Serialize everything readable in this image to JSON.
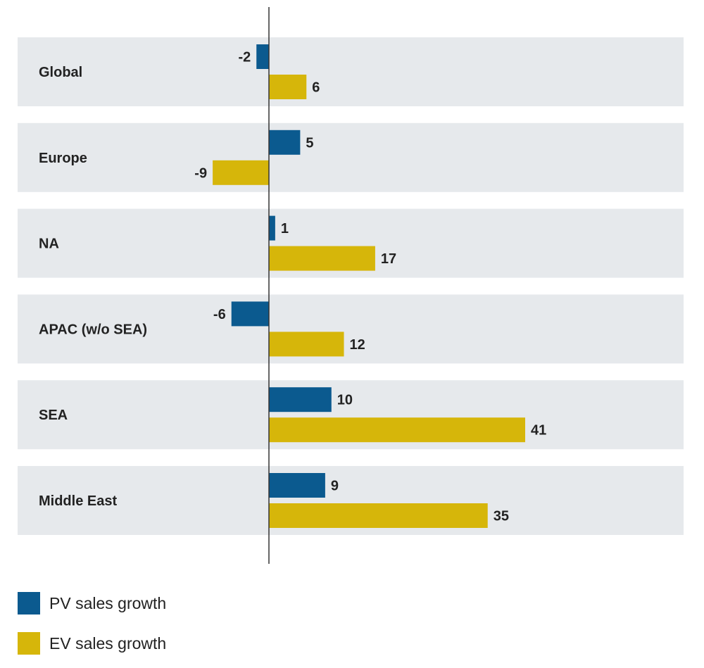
{
  "chart_data": {
    "type": "bar",
    "orientation": "horizontal",
    "categories": [
      "Global",
      "Europe",
      "NA",
      "APAC (w/o SEA)",
      "SEA",
      "Middle East"
    ],
    "series": [
      {
        "name": "PV sales growth",
        "color": "#0b5a8f",
        "values": [
          -2,
          5,
          1,
          -6,
          10,
          9
        ]
      },
      {
        "name": "EV sales growth",
        "color": "#d6b60a",
        "values": [
          6,
          -9,
          17,
          12,
          41,
          35
        ]
      }
    ],
    "xlim": [
      -40,
      66
    ],
    "band_color": "#e6e9ec",
    "grid": false,
    "legend_position": "bottom-left"
  }
}
